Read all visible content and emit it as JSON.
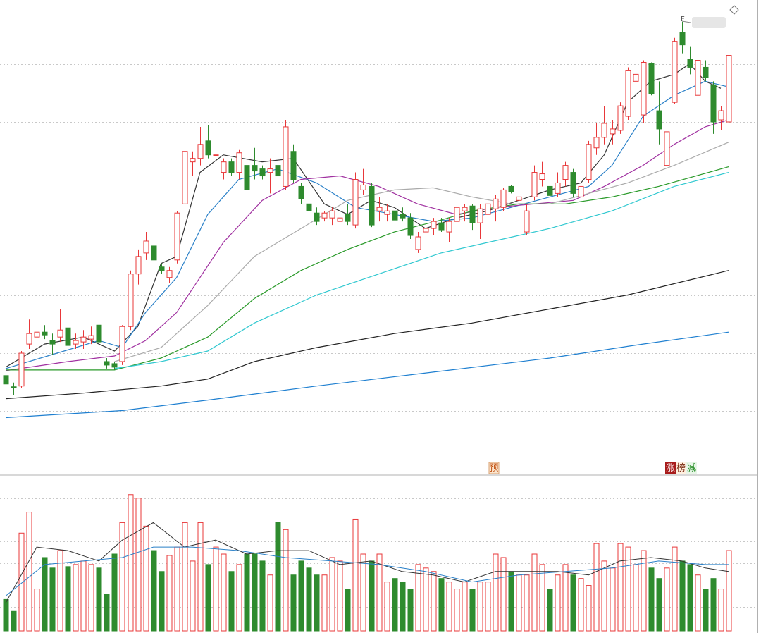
{
  "chart_data": [
    {
      "type": "candlestick",
      "up_color": "#e8383a",
      "down_color": "#2e8b2e",
      "ylim": [
        0,
        672
      ],
      "yticks": [
        90,
        172,
        255,
        337,
        420,
        502,
        584
      ],
      "grid": true,
      "open": [
        140,
        124,
        125,
        185,
        195,
        202,
        190,
        195,
        208,
        185,
        188,
        192,
        212,
        160,
        157,
        160,
        210,
        285,
        315,
        325,
        295,
        280,
        305,
        385,
        445,
        450,
        475,
        455,
        430,
        445,
        430,
        440,
        440,
        435,
        430,
        440,
        410,
        460,
        410,
        385,
        372,
        365,
        365,
        360,
        370,
        355,
        405,
        410,
        375,
        370,
        375,
        370,
        365,
        320,
        345,
        350,
        358,
        345,
        360,
        375,
        382,
        358,
        370,
        378,
        380,
        410,
        390,
        345,
        395,
        420,
        410,
        400,
        420,
        430,
        395,
        420,
        465,
        480,
        485,
        490,
        510,
        560,
        512,
        585,
        518,
        440,
        530,
        630,
        592,
        540,
        580,
        555,
        505,
        502
      ],
      "high": [
        142,
        130,
        175,
        220,
        212,
        212,
        200,
        235,
        215,
        200,
        205,
        210,
        215,
        165,
        160,
        212,
        290,
        320,
        345,
        330,
        300,
        295,
        375,
        465,
        460,
        495,
        497,
        460,
        450,
        450,
        462,
        445,
        465,
        440,
        450,
        452,
        505,
        470,
        415,
        390,
        380,
        375,
        380,
        390,
        385,
        430,
        435,
        415,
        395,
        385,
        385,
        380,
        372,
        345,
        360,
        365,
        365,
        365,
        385,
        385,
        385,
        385,
        390,
        398,
        408,
        412,
        400,
        385,
        440,
        445,
        420,
        430,
        445,
        435,
        415,
        475,
        500,
        525,
        505,
        530,
        580,
        590,
        590,
        587,
        560,
        495,
        622,
        645,
        610,
        605,
        590,
        560,
        525,
        625
      ],
      "low": [
        122,
        112,
        122,
        178,
        178,
        192,
        170,
        188,
        180,
        178,
        178,
        185,
        185,
        150,
        148,
        155,
        205,
        270,
        305,
        298,
        285,
        272,
        300,
        380,
        425,
        440,
        450,
        445,
        420,
        425,
        420,
        400,
        420,
        420,
        400,
        420,
        405,
        415,
        385,
        370,
        355,
        360,
        355,
        355,
        355,
        350,
        398,
        352,
        360,
        360,
        358,
        360,
        335,
        315,
        330,
        340,
        345,
        330,
        350,
        360,
        348,
        335,
        360,
        360,
        375,
        400,
        375,
        340,
        390,
        410,
        395,
        395,
        410,
        395,
        388,
        415,
        455,
        470,
        470,
        485,
        505,
        550,
        500,
        540,
        470,
        420,
        528,
        600,
        570,
        530,
        560,
        485,
        490,
        495
      ],
      "close": [
        128,
        123,
        172,
        200,
        202,
        198,
        185,
        205,
        183,
        190,
        195,
        197,
        188,
        155,
        152,
        210,
        285,
        310,
        332,
        305,
        290,
        290,
        372,
        460,
        450,
        470,
        455,
        455,
        445,
        430,
        458,
        405,
        432,
        425,
        435,
        425,
        495,
        420,
        392,
        375,
        360,
        372,
        375,
        365,
        360,
        420,
        412,
        355,
        380,
        375,
        362,
        365,
        340,
        338,
        350,
        360,
        348,
        360,
        380,
        380,
        358,
        378,
        385,
        392,
        405,
        402,
        395,
        375,
        430,
        428,
        397,
        415,
        440,
        400,
        410,
        470,
        480,
        500,
        492,
        525,
        575,
        570,
        587,
        542,
        492,
        488,
        617,
        612,
        580,
        590,
        565,
        502,
        518,
        597
      ],
      "lines": [
        {
          "color": "#333333",
          "x": [
            0,
            5,
            10,
            14,
            17,
            20,
            22,
            25,
            28,
            33,
            37,
            41,
            44,
            47,
            50,
            54,
            58,
            62,
            66,
            70,
            74,
            77,
            80,
            83,
            86,
            88,
            90,
            92
          ],
          "values": [
            152,
            185,
            195,
            175,
            210,
            300,
            310,
            430,
            455,
            445,
            450,
            385,
            370,
            390,
            380,
            350,
            365,
            375,
            390,
            405,
            415,
            455,
            530,
            560,
            570,
            585,
            560,
            550
          ]
        },
        {
          "color": "#2a80c8",
          "x": [
            0,
            6,
            12,
            15,
            18,
            22,
            26,
            30,
            35,
            40,
            45,
            50,
            55,
            60,
            65,
            70,
            75,
            78,
            82,
            86,
            90,
            93
          ],
          "values": [
            150,
            170,
            190,
            180,
            230,
            280,
            370,
            420,
            435,
            415,
            380,
            370,
            360,
            365,
            380,
            395,
            410,
            440,
            510,
            540,
            560,
            552
          ]
        },
        {
          "color": "#a030a0",
          "x": [
            0,
            8,
            14,
            18,
            22,
            28,
            33,
            38,
            43,
            48,
            53,
            58,
            63,
            68,
            73,
            77,
            82,
            86,
            90,
            93
          ],
          "values": [
            147,
            160,
            168,
            190,
            230,
            330,
            390,
            420,
            425,
            410,
            385,
            370,
            380,
            385,
            390,
            410,
            440,
            470,
            495,
            505
          ]
        },
        {
          "color": "#aaaaaa",
          "x": [
            14,
            20,
            26,
            32,
            38,
            44,
            50,
            55,
            60,
            65,
            70,
            75,
            80,
            86,
            93
          ],
          "values": [
            160,
            180,
            240,
            310,
            350,
            390,
            405,
            408,
            395,
            385,
            385,
            400,
            415,
            440,
            473
          ]
        },
        {
          "color": "#2a9a2a",
          "x": [
            0,
            14,
            20,
            26,
            32,
            38,
            44,
            50,
            56,
            60,
            66,
            72,
            78,
            84,
            93
          ],
          "values": [
            148,
            148,
            165,
            195,
            250,
            290,
            320,
            345,
            362,
            375,
            385,
            385,
            395,
            410,
            438
          ]
        },
        {
          "color": "#30c8d0",
          "x": [
            14,
            20,
            26,
            32,
            40,
            48,
            56,
            62,
            70,
            78,
            86,
            93
          ],
          "values": [
            150,
            160,
            175,
            215,
            255,
            285,
            315,
            330,
            350,
            375,
            410,
            430
          ]
        },
        {
          "color": "#222222",
          "x": [
            0,
            10,
            20,
            26,
            32,
            40,
            50,
            60,
            70,
            80,
            93
          ],
          "values": [
            107,
            115,
            125,
            135,
            160,
            180,
            200,
            215,
            235,
            255,
            290
          ]
        },
        {
          "color": "#1e7fd0",
          "x": [
            0,
            15,
            26,
            40,
            55,
            70,
            82,
            93
          ],
          "values": [
            80,
            90,
            105,
            125,
            145,
            165,
            185,
            202
          ]
        }
      ],
      "annotations": [
        "F",
        "预",
        "涨",
        "榜",
        "减"
      ]
    },
    {
      "type": "bar",
      "ylim": [
        0,
        219
      ],
      "yticks": [
        34,
        65,
        97,
        128,
        159,
        190
      ],
      "grid": true,
      "values": [
        45,
        28,
        140,
        170,
        60,
        105,
        90,
        115,
        92,
        95,
        100,
        95,
        90,
        52,
        110,
        155,
        195,
        190,
        150,
        115,
        85,
        108,
        120,
        155,
        100,
        155,
        95,
        120,
        110,
        85,
        95,
        110,
        110,
        100,
        80,
        155,
        145,
        80,
        100,
        90,
        80,
        80,
        105,
        100,
        60,
        160,
        110,
        100,
        110,
        70,
        75,
        70,
        60,
        95,
        90,
        85,
        75,
        70,
        60,
        70,
        60,
        70,
        70,
        110,
        105,
        85,
        80,
        80,
        110,
        95,
        60,
        80,
        95,
        80,
        75,
        65,
        125,
        100,
        90,
        125,
        120,
        95,
        115,
        90,
        75,
        90,
        120,
        100,
        95,
        80,
        60,
        75,
        60,
        115
      ],
      "lines": [
        {
          "color": "#333333",
          "x": [
            0,
            4,
            8,
            12,
            15,
            19,
            23,
            27,
            31,
            35,
            39,
            43,
            47,
            51,
            55,
            59,
            63,
            67,
            71,
            75,
            79,
            83,
            87,
            90,
            93
          ],
          "values": [
            40,
            120,
            115,
            100,
            130,
            155,
            120,
            130,
            110,
            115,
            115,
            95,
            100,
            85,
            80,
            70,
            85,
            85,
            85,
            80,
            100,
            105,
            100,
            90,
            85
          ]
        },
        {
          "color": "#2a80c8",
          "x": [
            0,
            5,
            10,
            15,
            19,
            24,
            30,
            36,
            42,
            48,
            54,
            60,
            66,
            72,
            78,
            84,
            90,
            93
          ],
          "values": [
            50,
            95,
            100,
            105,
            120,
            120,
            115,
            105,
            100,
            95,
            85,
            70,
            80,
            85,
            90,
            100,
            95,
            95
          ]
        }
      ]
    }
  ]
}
